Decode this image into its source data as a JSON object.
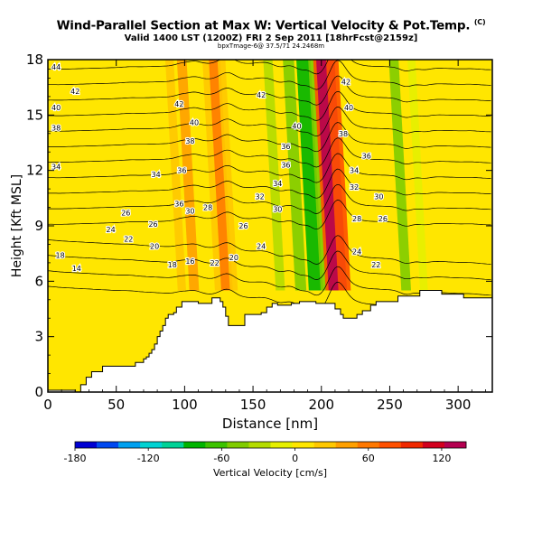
{
  "title": "Wind-Parallel Section at Max W: Vertical Velocity & Pot.Temp.",
  "title_mark": "(C)",
  "subtitle": "Valid 1400 LST (1200Z) FRI 2 Sep 2011 [18hrFcst@2159z]",
  "subsubtitle": "bpxTmage-6@ 37.5/71 24.2468m",
  "chart_data": {
    "type": "heatmap",
    "xlabel": "Distance [nm]",
    "ylabel": "Height [Kft MSL]",
    "xlim": [
      0,
      325
    ],
    "ylim": [
      0,
      18
    ],
    "xticks": [
      0,
      50,
      100,
      150,
      200,
      250,
      300
    ],
    "yticks": [
      0,
      3,
      6,
      9,
      12,
      15,
      18
    ],
    "colorbar": {
      "label": "Vertical Velocity [cm/s]",
      "tick_labels": [
        "-180",
        "-120",
        "-60",
        "0",
        "60",
        "120"
      ],
      "tick_values": [
        -180,
        -120,
        -60,
        0,
        60,
        120
      ],
      "range": [
        -180,
        140
      ],
      "colors": [
        "#0000d2",
        "#0048f0",
        "#00a0f0",
        "#00d2d2",
        "#00d296",
        "#00b400",
        "#3cc300",
        "#80cc00",
        "#b4dc00",
        "#e6f000",
        "#ffe600",
        "#ffc800",
        "#ffa000",
        "#ff7800",
        "#ff5000",
        "#f02800",
        "#d2001e",
        "#b40050"
      ]
    },
    "vertical_velocity_bands": [
      {
        "x": 0,
        "w": 5
      },
      {
        "x": 60,
        "w": 5
      },
      {
        "x": 98,
        "w": 25
      },
      {
        "x": 107,
        "w": 40
      },
      {
        "x": 115,
        "w": 10
      },
      {
        "x": 125,
        "w": 20
      },
      {
        "x": 131,
        "w": 60
      },
      {
        "x": 136,
        "w": 20
      },
      {
        "x": 157,
        "w": 10
      },
      {
        "x": 170,
        "w": -35
      },
      {
        "x": 185,
        "w": -55
      },
      {
        "x": 196,
        "w": -90
      },
      {
        "x": 203,
        "w": -40
      },
      {
        "x": 208,
        "w": 80
      },
      {
        "x": 212,
        "w": 135
      },
      {
        "x": 217,
        "w": 70
      },
      {
        "x": 225,
        "w": 15
      },
      {
        "x": 262,
        "w": -40
      },
      {
        "x": 275,
        "w": -20
      },
      {
        "x": 310,
        "w": 5
      }
    ],
    "theta_contours": {
      "levels": [
        14,
        16,
        18,
        20,
        22,
        24,
        26,
        28,
        30,
        32,
        34,
        36,
        38,
        40,
        42,
        44
      ],
      "labels": [
        {
          "text": "44",
          "x": 6,
          "y": 17.6
        },
        {
          "text": "42",
          "x": 20,
          "y": 16.3
        },
        {
          "text": "40",
          "x": 6,
          "y": 15.4
        },
        {
          "text": "38",
          "x": 6,
          "y": 14.3
        },
        {
          "text": "34",
          "x": 6,
          "y": 12.2
        },
        {
          "text": "26",
          "x": 57,
          "y": 9.7
        },
        {
          "text": "24",
          "x": 46,
          "y": 8.8
        },
        {
          "text": "22",
          "x": 59,
          "y": 8.3
        },
        {
          "text": "18",
          "x": 9,
          "y": 7.4
        },
        {
          "text": "14",
          "x": 21,
          "y": 6.7
        },
        {
          "text": "26",
          "x": 77,
          "y": 9.1
        },
        {
          "text": "20",
          "x": 78,
          "y": 7.9
        },
        {
          "text": "18",
          "x": 91,
          "y": 6.9
        },
        {
          "text": "16",
          "x": 104,
          "y": 7.1
        },
        {
          "text": "22",
          "x": 122,
          "y": 7.0
        },
        {
          "text": "20",
          "x": 136,
          "y": 7.3
        },
        {
          "text": "24",
          "x": 156,
          "y": 7.9
        },
        {
          "text": "26",
          "x": 143,
          "y": 9.0
        },
        {
          "text": "28",
          "x": 117,
          "y": 10.0
        },
        {
          "text": "30",
          "x": 104,
          "y": 9.8
        },
        {
          "text": "30",
          "x": 168,
          "y": 9.9
        },
        {
          "text": "32",
          "x": 155,
          "y": 10.6
        },
        {
          "text": "34",
          "x": 168,
          "y": 11.3
        },
        {
          "text": "36",
          "x": 174,
          "y": 12.3
        },
        {
          "text": "36",
          "x": 174,
          "y": 13.3
        },
        {
          "text": "38",
          "x": 104,
          "y": 13.6
        },
        {
          "text": "36",
          "x": 98,
          "y": 12.0
        },
        {
          "text": "34",
          "x": 79,
          "y": 11.8
        },
        {
          "text": "36",
          "x": 96,
          "y": 10.2
        },
        {
          "text": "40",
          "x": 107,
          "y": 14.6
        },
        {
          "text": "42",
          "x": 96,
          "y": 15.6
        },
        {
          "text": "42",
          "x": 156,
          "y": 16.1
        },
        {
          "text": "40",
          "x": 182,
          "y": 14.4
        },
        {
          "text": "42",
          "x": 218,
          "y": 16.8
        },
        {
          "text": "40",
          "x": 220,
          "y": 15.4
        },
        {
          "text": "38",
          "x": 216,
          "y": 14.0
        },
        {
          "text": "36",
          "x": 233,
          "y": 12.8
        },
        {
          "text": "34",
          "x": 224,
          "y": 12.0
        },
        {
          "text": "32",
          "x": 224,
          "y": 11.1
        },
        {
          "text": "30",
          "x": 242,
          "y": 10.6
        },
        {
          "text": "28",
          "x": 226,
          "y": 9.4
        },
        {
          "text": "26",
          "x": 245,
          "y": 9.4
        },
        {
          "text": "24",
          "x": 226,
          "y": 7.6
        },
        {
          "text": "22",
          "x": 240,
          "y": 6.9
        }
      ]
    },
    "terrain_profile": [
      [
        0,
        0.1
      ],
      [
        4,
        0.1
      ],
      [
        20,
        0
      ],
      [
        24,
        0.4
      ],
      [
        28,
        0.8
      ],
      [
        32,
        1.1
      ],
      [
        36,
        1.1
      ],
      [
        40,
        1.4
      ],
      [
        60,
        1.4
      ],
      [
        64,
        1.6
      ],
      [
        66,
        1.6
      ],
      [
        68,
        1.6
      ],
      [
        70,
        1.8
      ],
      [
        72,
        1.9
      ],
      [
        74,
        2.1
      ],
      [
        76,
        2.3
      ],
      [
        78,
        2.6
      ],
      [
        80,
        3.0
      ],
      [
        82,
        3.3
      ],
      [
        84,
        3.6
      ],
      [
        86,
        4.0
      ],
      [
        88,
        4.2
      ],
      [
        92,
        4.3
      ],
      [
        94,
        4.6
      ],
      [
        96,
        4.6
      ],
      [
        98,
        4.9
      ],
      [
        104,
        4.9
      ],
      [
        110,
        4.8
      ],
      [
        120,
        5.1
      ],
      [
        126,
        4.9
      ],
      [
        128,
        4.6
      ],
      [
        130,
        4.1
      ],
      [
        132,
        3.6
      ],
      [
        140,
        3.6
      ],
      [
        144,
        4.2
      ],
      [
        156,
        4.3
      ],
      [
        160,
        4.6
      ],
      [
        164,
        4.8
      ],
      [
        168,
        4.7
      ],
      [
        178,
        4.8
      ],
      [
        184,
        4.9
      ],
      [
        192,
        4.9
      ],
      [
        196,
        4.8
      ],
      [
        204,
        4.8
      ],
      [
        210,
        4.5
      ],
      [
        214,
        4.2
      ],
      [
        216,
        4.0
      ],
      [
        224,
        4.0
      ],
      [
        226,
        4.2
      ],
      [
        230,
        4.4
      ],
      [
        236,
        4.7
      ],
      [
        240,
        4.9
      ],
      [
        252,
        4.9
      ],
      [
        256,
        5.2
      ],
      [
        266,
        5.2
      ],
      [
        272,
        5.5
      ],
      [
        284,
        5.5
      ],
      [
        288,
        5.3
      ],
      [
        300,
        5.3
      ],
      [
        304,
        5.1
      ],
      [
        325,
        5.1
      ]
    ]
  }
}
